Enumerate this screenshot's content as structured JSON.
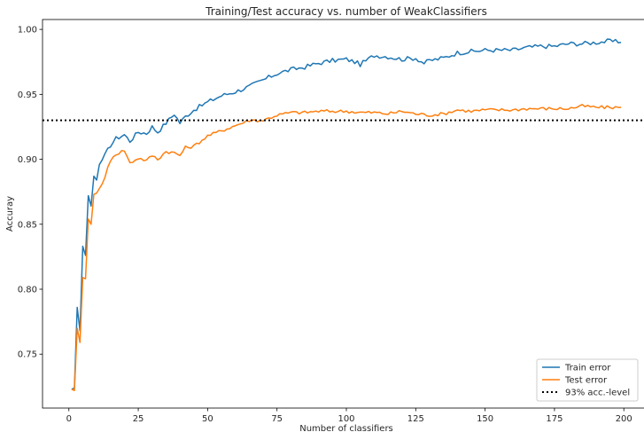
{
  "chart_data": {
    "type": "line",
    "title": "Training/Test accuracy vs. number of WeakClassifiers",
    "xlabel": "Number of classifiers",
    "ylabel": "Accuray",
    "xlim": [
      -9.5,
      209.5
    ],
    "ylim": [
      0.7085,
      1.0076
    ],
    "xticks": [
      0,
      25,
      50,
      75,
      100,
      125,
      150,
      175,
      200
    ],
    "xtick_labels": [
      "0",
      "25",
      "50",
      "75",
      "100",
      "125",
      "150",
      "175",
      "200"
    ],
    "yticks": [
      0.75,
      0.8,
      0.85,
      0.9,
      0.95,
      1.0
    ],
    "ytick_labels": [
      "0.75",
      "0.80",
      "0.85",
      "0.90",
      "0.95",
      "1.00"
    ],
    "grid": false,
    "legend_position": "lower-right",
    "series": [
      {
        "name": "Train error",
        "color": "#1f77b4",
        "line_style": "solid",
        "anchors": [
          [
            1,
            0.723
          ],
          [
            2,
            0.724
          ],
          [
            3,
            0.786
          ],
          [
            4,
            0.768
          ],
          [
            5,
            0.833
          ],
          [
            6,
            0.826
          ],
          [
            7,
            0.872
          ],
          [
            8,
            0.864
          ],
          [
            9,
            0.887
          ],
          [
            10,
            0.884
          ],
          [
            11,
            0.896
          ],
          [
            13,
            0.903
          ],
          [
            15,
            0.911
          ],
          [
            17,
            0.916
          ],
          [
            20,
            0.919
          ],
          [
            22,
            0.914
          ],
          [
            25,
            0.921
          ],
          [
            28,
            0.92
          ],
          [
            30,
            0.925
          ],
          [
            32,
            0.921
          ],
          [
            35,
            0.928
          ],
          [
            38,
            0.935
          ],
          [
            40,
            0.928
          ],
          [
            42,
            0.933
          ],
          [
            45,
            0.938
          ],
          [
            50,
            0.944
          ],
          [
            55,
            0.949
          ],
          [
            60,
            0.952
          ],
          [
            65,
            0.956
          ],
          [
            70,
            0.961
          ],
          [
            75,
            0.966
          ],
          [
            80,
            0.969
          ],
          [
            85,
            0.971
          ],
          [
            90,
            0.974
          ],
          [
            95,
            0.976
          ],
          [
            100,
            0.977
          ],
          [
            103,
            0.975
          ],
          [
            105,
            0.973
          ],
          [
            110,
            0.98
          ],
          [
            115,
            0.979
          ],
          [
            120,
            0.977
          ],
          [
            125,
            0.978
          ],
          [
            128,
            0.974
          ],
          [
            130,
            0.976
          ],
          [
            135,
            0.978
          ],
          [
            140,
            0.982
          ],
          [
            145,
            0.983
          ],
          [
            150,
            0.984
          ],
          [
            155,
            0.984
          ],
          [
            160,
            0.984
          ],
          [
            165,
            0.986
          ],
          [
            170,
            0.987
          ],
          [
            175,
            0.987
          ],
          [
            180,
            0.989
          ],
          [
            185,
            0.989
          ],
          [
            190,
            0.99
          ],
          [
            195,
            0.991
          ],
          [
            199,
            0.99
          ]
        ]
      },
      {
        "name": "Test error",
        "color": "#ff7f0e",
        "line_style": "solid",
        "anchors": [
          [
            1,
            0.723
          ],
          [
            2,
            0.722
          ],
          [
            3,
            0.77
          ],
          [
            4,
            0.759
          ],
          [
            5,
            0.809
          ],
          [
            6,
            0.808
          ],
          [
            7,
            0.854
          ],
          [
            8,
            0.85
          ],
          [
            9,
            0.873
          ],
          [
            10,
            0.874
          ],
          [
            12,
            0.881
          ],
          [
            14,
            0.893
          ],
          [
            16,
            0.903
          ],
          [
            18,
            0.905
          ],
          [
            20,
            0.907
          ],
          [
            22,
            0.897
          ],
          [
            25,
            0.901
          ],
          [
            28,
            0.899
          ],
          [
            30,
            0.903
          ],
          [
            32,
            0.9
          ],
          [
            35,
            0.906
          ],
          [
            38,
            0.905
          ],
          [
            40,
            0.903
          ],
          [
            42,
            0.909
          ],
          [
            45,
            0.91
          ],
          [
            50,
            0.918
          ],
          [
            55,
            0.922
          ],
          [
            60,
            0.926
          ],
          [
            65,
            0.93
          ],
          [
            70,
            0.93
          ],
          [
            75,
            0.934
          ],
          [
            80,
            0.936
          ],
          [
            85,
            0.936
          ],
          [
            90,
            0.937
          ],
          [
            95,
            0.937
          ],
          [
            100,
            0.937
          ],
          [
            105,
            0.936
          ],
          [
            110,
            0.936
          ],
          [
            115,
            0.935
          ],
          [
            120,
            0.937
          ],
          [
            125,
            0.935
          ],
          [
            130,
            0.934
          ],
          [
            135,
            0.935
          ],
          [
            140,
            0.938
          ],
          [
            145,
            0.937
          ],
          [
            150,
            0.938
          ],
          [
            155,
            0.938
          ],
          [
            160,
            0.938
          ],
          [
            165,
            0.939
          ],
          [
            170,
            0.939
          ],
          [
            175,
            0.939
          ],
          [
            180,
            0.939
          ],
          [
            185,
            0.941
          ],
          [
            190,
            0.94
          ],
          [
            195,
            0.94
          ],
          [
            199,
            0.94
          ]
        ]
      },
      {
        "name": "93% acc.-level",
        "color": "#000000",
        "line_style": "dotted",
        "type": "hline",
        "y": 0.93
      }
    ]
  }
}
